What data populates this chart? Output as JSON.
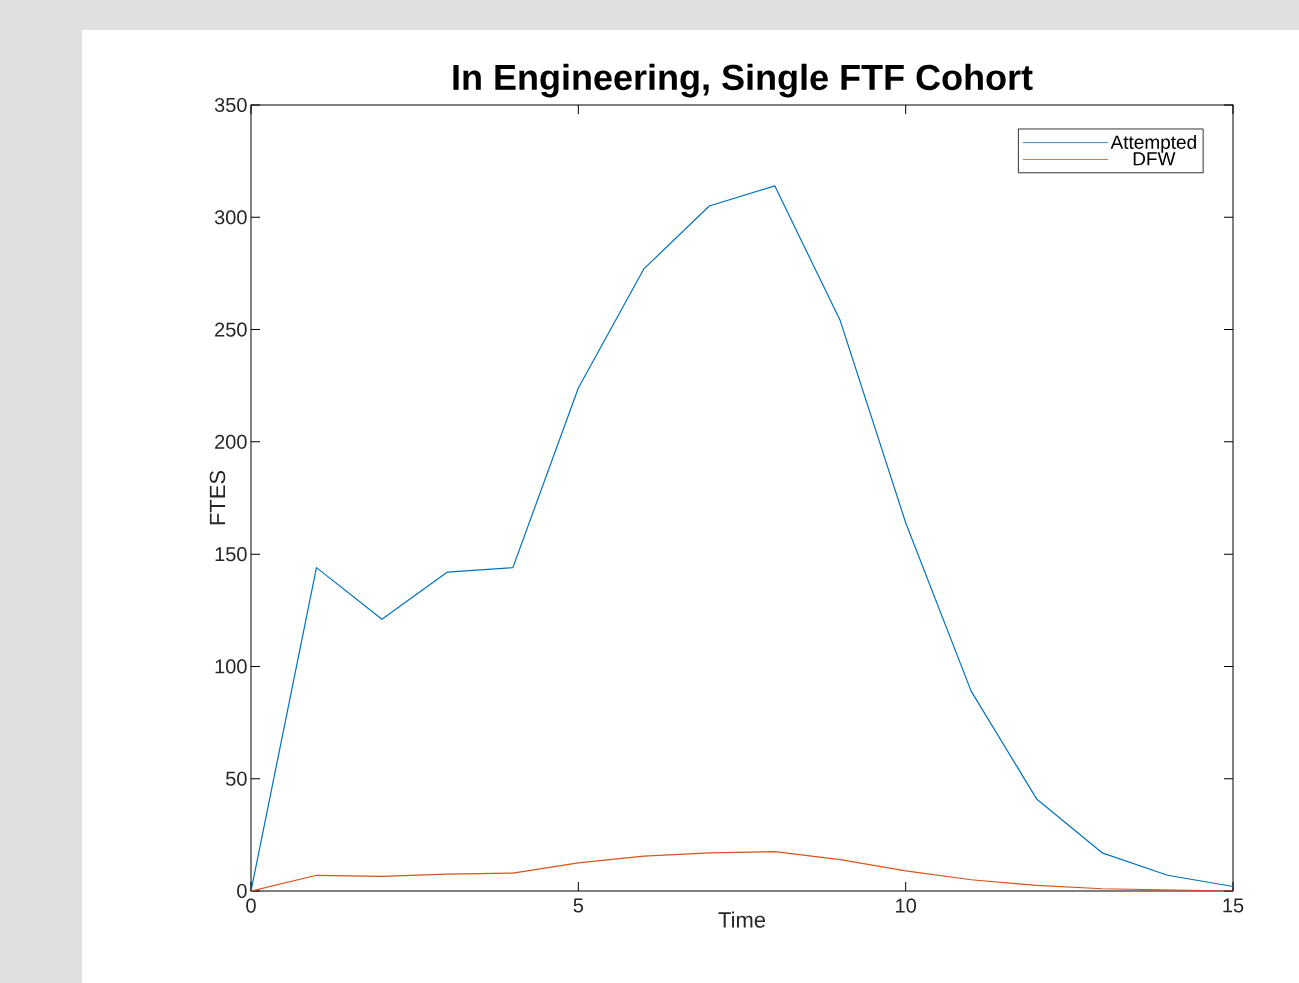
{
  "chart_data": {
    "type": "line",
    "title": "In Engineering, Single FTF Cohort",
    "xlabel": "Time",
    "ylabel": "FTES",
    "x": [
      0,
      1,
      2,
      3,
      4,
      5,
      6,
      7,
      8,
      9,
      10,
      11,
      12,
      13,
      14,
      15
    ],
    "series": [
      {
        "name": "Attempted",
        "color": "#0072bd",
        "values": [
          0,
          144,
          121,
          142,
          144,
          224,
          277,
          305,
          314,
          254,
          164,
          89,
          41,
          17,
          7,
          2
        ]
      },
      {
        "name": "DFW",
        "color": "#d95319",
        "values": [
          0,
          7,
          6.5,
          7.5,
          8,
          12.5,
          15.5,
          17,
          17.5,
          14,
          9,
          5,
          2.5,
          1,
          0.5,
          0
        ]
      }
    ],
    "xlim": [
      0,
      15
    ],
    "xticks": [
      0,
      5,
      10,
      15
    ],
    "ylim": [
      0,
      350
    ],
    "yticks": [
      0,
      50,
      100,
      150,
      200,
      250,
      300,
      350
    ],
    "grid": false,
    "legend": "top right",
    "marker": "none",
    "line_style": "solid"
  }
}
